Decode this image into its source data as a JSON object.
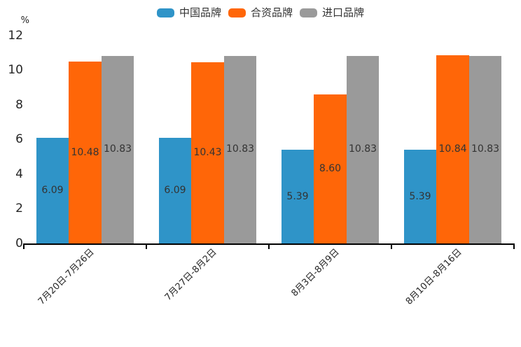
{
  "chart_data": {
    "type": "bar",
    "title": "",
    "categories": [
      "7月20日-7月26日",
      "7月27日-8月2日",
      "8月3日-8月9日",
      "8月10日-8月16日"
    ],
    "series": [
      {
        "name": "中国品牌",
        "color": "#2F94C8",
        "values": [
          6.09,
          6.09,
          5.39,
          5.39
        ],
        "labels": [
          "6.09",
          "6.09",
          "5.39",
          "5.39"
        ]
      },
      {
        "name": "合资品牌",
        "color": "#FF6608",
        "values": [
          10.48,
          10.43,
          8.6,
          10.84
        ],
        "labels": [
          "10.48",
          "10.43",
          "8.60",
          "10.84"
        ]
      },
      {
        "name": "进口品牌",
        "color": "#9A9A9A",
        "values": [
          10.83,
          10.83,
          10.83,
          10.83
        ],
        "labels": [
          "10.83",
          "10.83",
          "10.83",
          "10.83"
        ]
      }
    ],
    "xlabel": "",
    "ylabel": "%",
    "ylim": [
      0,
      12
    ],
    "yticks": [
      0,
      2,
      4,
      6,
      8,
      10,
      12
    ],
    "legend_position": "top",
    "grid": false,
    "bar_label_position": "center",
    "axis_color": "#000000",
    "text_color": "#333333"
  }
}
